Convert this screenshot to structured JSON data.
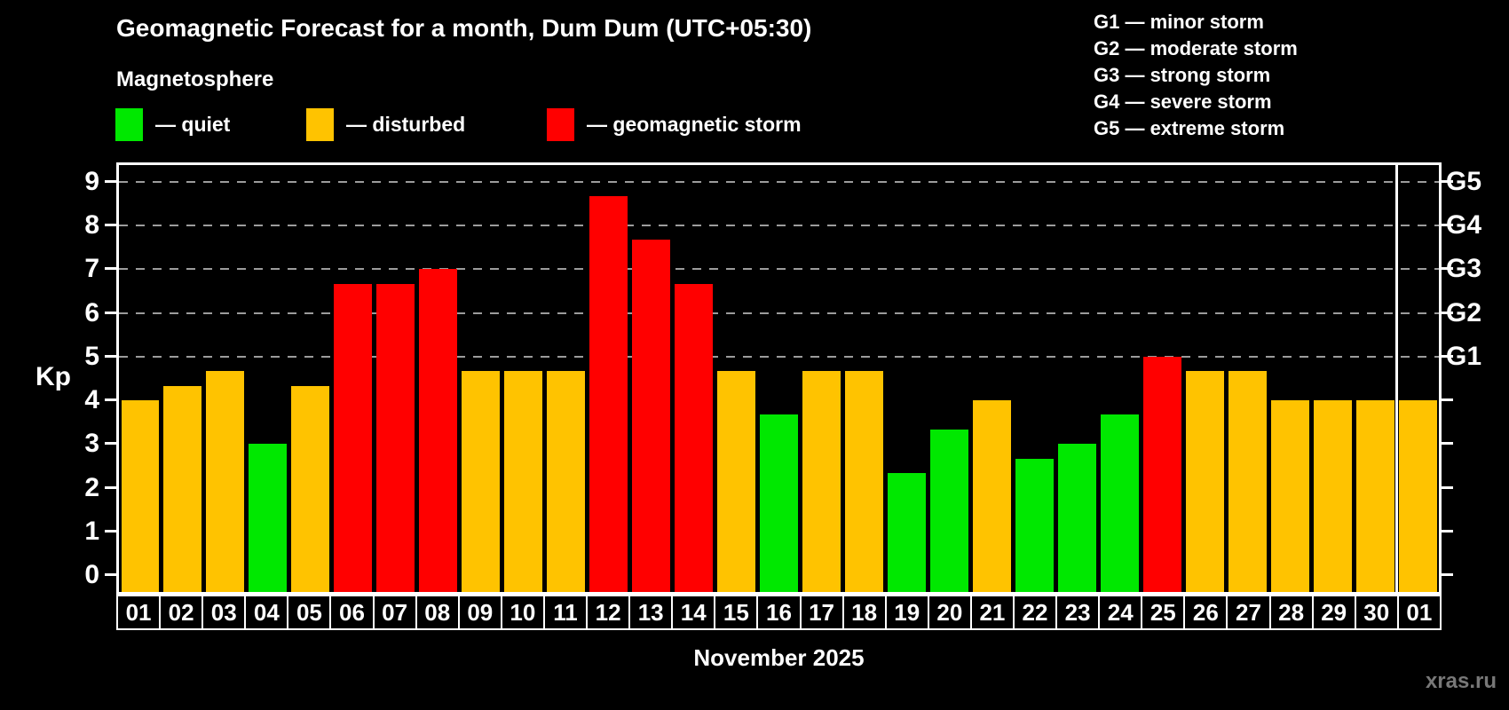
{
  "header": {
    "title": "Geomagnetic Forecast for a month, Dum Dum (UTC+05:30)",
    "subtitle": "Magnetosphere"
  },
  "legend": {
    "items": [
      {
        "key": "quiet",
        "label": "— quiet",
        "color": "#00e800"
      },
      {
        "key": "disturbed",
        "label": "— disturbed",
        "color": "#ffc300"
      },
      {
        "key": "storm",
        "label": "— geomagnetic storm",
        "color": "#ff0000"
      }
    ]
  },
  "storm_scale_legend": {
    "items": [
      "G1 — minor storm",
      "G2 — moderate storm",
      "G3 — strong storm",
      "G4 — severe storm",
      "G5 — extreme storm"
    ]
  },
  "axes": {
    "y_label": "Kp",
    "y_ticks": [
      0,
      1,
      2,
      3,
      4,
      5,
      6,
      7,
      8,
      9
    ],
    "right_labels": [
      {
        "text": "G1",
        "kp": 5
      },
      {
        "text": "G2",
        "kp": 6
      },
      {
        "text": "G3",
        "kp": 7
      },
      {
        "text": "G4",
        "kp": 8
      },
      {
        "text": "G5",
        "kp": 9
      }
    ],
    "x_label": "November 2025"
  },
  "watermark": "xras.ru",
  "chart_data": {
    "type": "bar",
    "title": "Geomagnetic Forecast for a month, Dum Dum (UTC+05:30)",
    "xlabel": "November 2025",
    "ylabel": "Kp",
    "ylim": [
      0,
      9
    ],
    "gridlines_at": [
      5,
      6,
      7,
      8,
      9
    ],
    "grid": "dashed-horizontal",
    "legend_position": "top-left",
    "month_separator_after": 30,
    "categories": [
      "01",
      "02",
      "03",
      "04",
      "05",
      "06",
      "07",
      "08",
      "09",
      "10",
      "11",
      "12",
      "13",
      "14",
      "15",
      "16",
      "17",
      "18",
      "19",
      "20",
      "21",
      "22",
      "23",
      "24",
      "25",
      "26",
      "27",
      "28",
      "29",
      "30",
      "01"
    ],
    "values": [
      4,
      4.33,
      4.67,
      3,
      4.33,
      6.67,
      6.67,
      7,
      4.67,
      4.67,
      4.67,
      8.67,
      7.67,
      6.67,
      4.67,
      3.67,
      4.67,
      4.67,
      2.33,
      3.33,
      4,
      2.67,
      3,
      3.67,
      5,
      4.67,
      4.67,
      4,
      4,
      4,
      4
    ],
    "statuses": [
      "disturbed",
      "disturbed",
      "disturbed",
      "quiet",
      "disturbed",
      "storm",
      "storm",
      "storm",
      "disturbed",
      "disturbed",
      "disturbed",
      "storm",
      "storm",
      "storm",
      "disturbed",
      "quiet",
      "disturbed",
      "disturbed",
      "quiet",
      "quiet",
      "disturbed",
      "quiet",
      "quiet",
      "quiet",
      "storm",
      "disturbed",
      "disturbed",
      "disturbed",
      "disturbed",
      "disturbed",
      "disturbed"
    ],
    "colors": {
      "quiet": "#00e800",
      "disturbed": "#ffc300",
      "storm": "#ff0000"
    }
  }
}
